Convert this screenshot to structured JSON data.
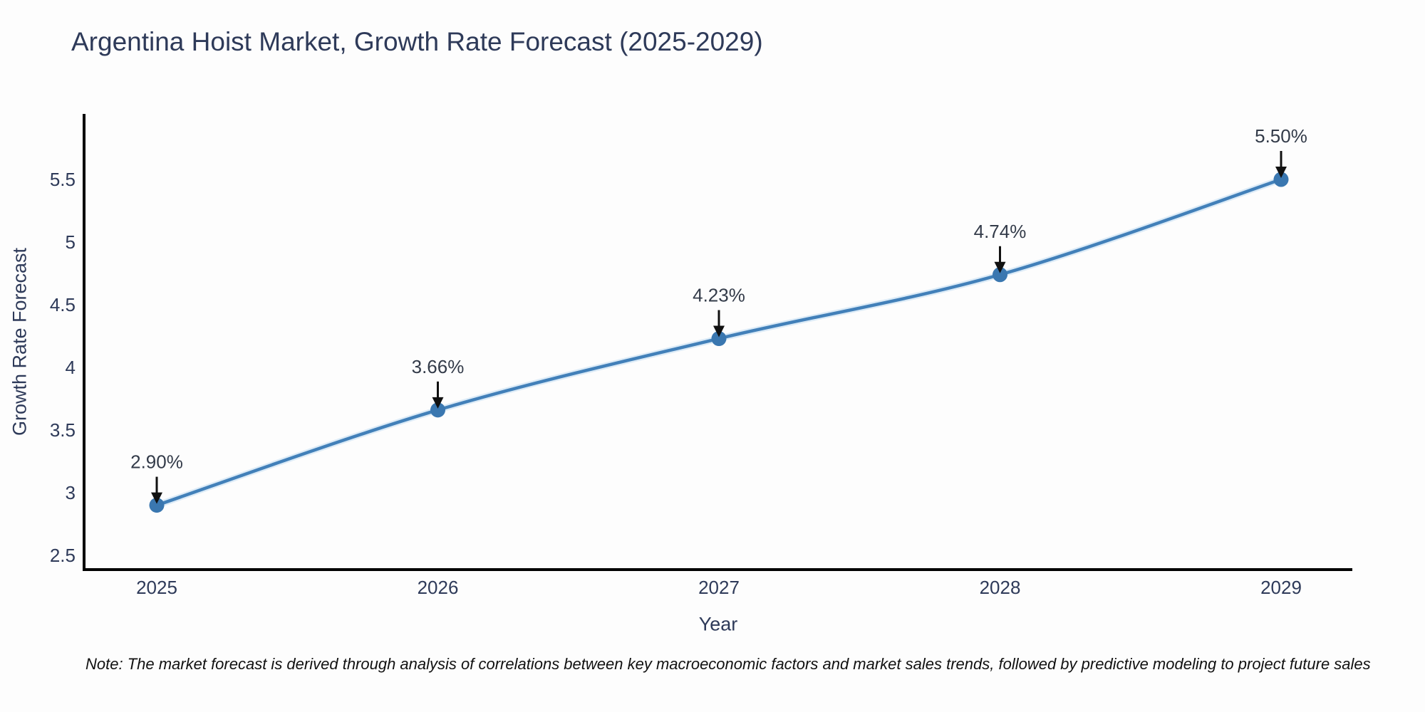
{
  "title": "Argentina Hoist Market, Growth Rate Forecast (2025-2029)",
  "note": "Note: The market forecast is derived through analysis of correlations between key macroeconomic factors and market sales trends, followed by predictive modeling to project future sales",
  "chart_data": {
    "type": "line",
    "title": "Argentina Hoist Market, Growth Rate Forecast (2025-2029)",
    "x": [
      2025,
      2026,
      2027,
      2028,
      2029
    ],
    "series": [
      {
        "name": "Growth Rate Forecast",
        "values": [
          2.9,
          3.66,
          4.23,
          4.74,
          5.5
        ]
      }
    ],
    "point_labels": [
      "2.90%",
      "3.66%",
      "4.23%",
      "4.74%",
      "5.50%"
    ],
    "xlabel": "Year",
    "ylabel": "Growth Rate Forecast",
    "ylim": [
      2.3,
      6.0
    ],
    "yticks": [
      2.5,
      3,
      3.5,
      4,
      4.5,
      5,
      5.5
    ],
    "grid": false,
    "legend_position": "none",
    "marker": "circle",
    "line_shape": "spline",
    "annotation_style": "value labels with black down-arrows above each point",
    "colors": {
      "line": "#4280b9",
      "line_halo": "#dcebf7",
      "marker": "#3a77b0",
      "axis": "#000000",
      "text": "#2e3a59",
      "annotation_text": "#333b49",
      "arrow": "#111111",
      "background": "#fdfdfd"
    }
  }
}
